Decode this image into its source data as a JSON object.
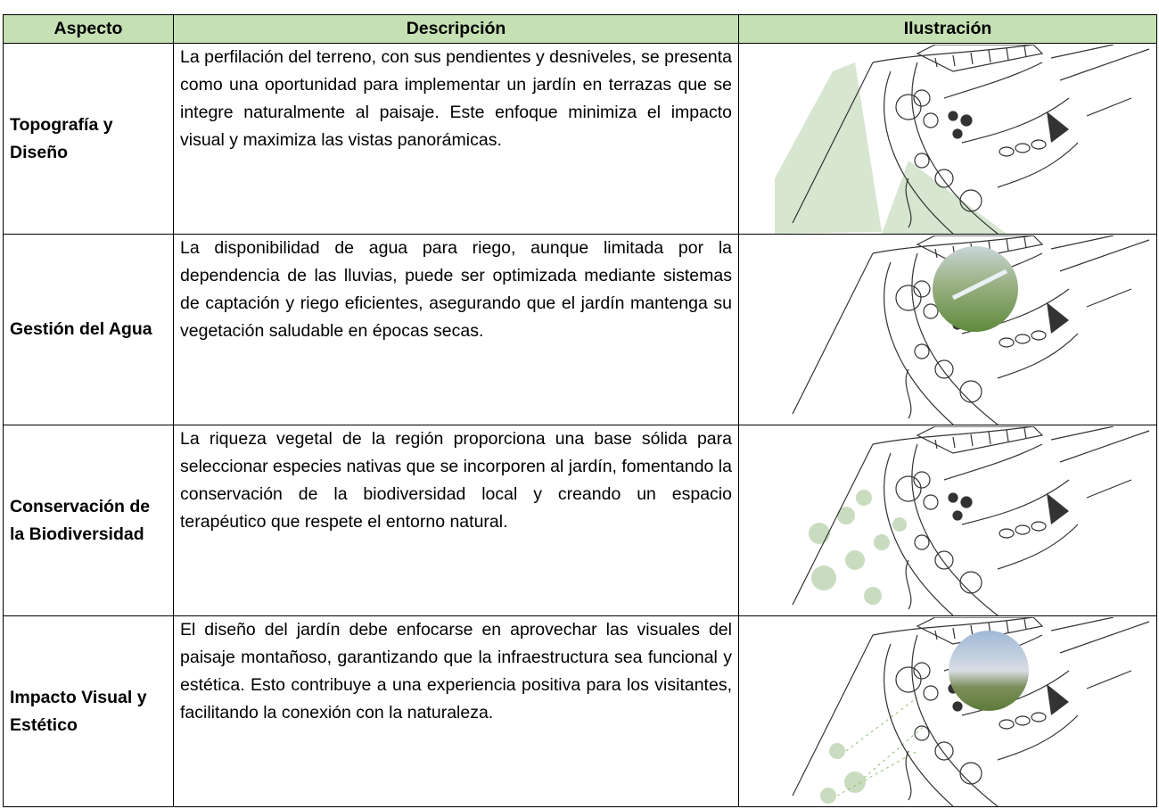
{
  "table": {
    "header": [
      "Aspecto",
      "Descripción",
      "Ilustración"
    ],
    "rows": [
      [
        "Topografía y Diseño",
        "La perfilación del terreno, con sus pendientes y desniveles, se presenta como una oportunidad para implementar un jardín en terrazas que se integre naturalmente al paisaje. Este enfoque minimiza el impacto visual y maximiza las vistas panorámicas."
      ],
      [
        "Gestión del Agua",
        "La disponibilidad de agua para riego, aunque limitada por la dependencia de las lluvias, puede ser optimizada mediante sistemas de captación y riego eficientes, asegurando que el jardín mantenga su vegetación saludable en épocas secas."
      ],
      [
        "Conservación de la Biodiversidad",
        "La riqueza vegetal de la región proporciona una base sólida para seleccionar especies nativas que se incorporen al jardín, fomentando la conservación de la biodiversidad local y creando un espacio terapéutico que respete el entorno natural."
      ],
      [
        "Impacto Visual y Estético",
        "El diseño del jardín debe enfocarse en aprovechar las visuales del paisaje montañoso, garantizando que la infraestructura sea funcional y estética. Esto contribuye a una experiencia positiva para los visitantes, facilitando la conexión con la naturaleza."
      ]
    ]
  }
}
